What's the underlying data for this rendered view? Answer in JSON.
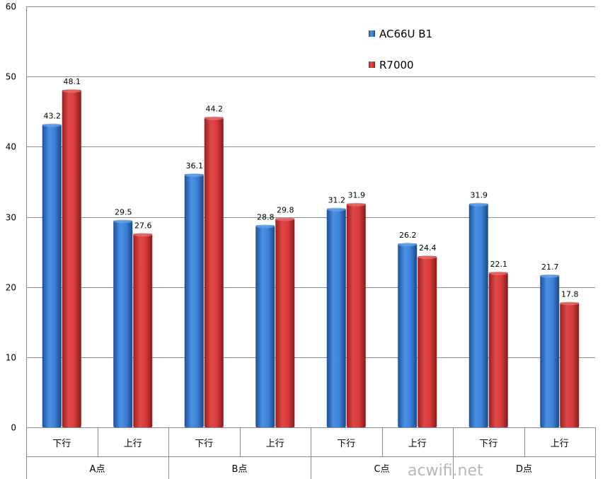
{
  "chart_data": {
    "type": "bar",
    "title": "",
    "ylim": [
      0,
      60
    ],
    "yticks": [
      0,
      10,
      20,
      30,
      40,
      50,
      60
    ],
    "grid": true,
    "legend_position": "top-right",
    "groups": [
      "A点",
      "B点",
      "C点",
      "D点"
    ],
    "categories": [
      "下行",
      "上行",
      "下行",
      "上行",
      "下行",
      "上行",
      "下行",
      "上行"
    ],
    "series": [
      {
        "name": "AC66U B1",
        "color": "#3a7fd5",
        "values": [
          43.2,
          29.5,
          36.1,
          28.8,
          31.2,
          26.2,
          31.9,
          21.7
        ]
      },
      {
        "name": "R7000",
        "color": "#d63a3a",
        "values": [
          48.1,
          27.6,
          44.2,
          29.8,
          31.9,
          24.4,
          22.1,
          17.8
        ]
      }
    ]
  },
  "watermark": "acwifi.net"
}
